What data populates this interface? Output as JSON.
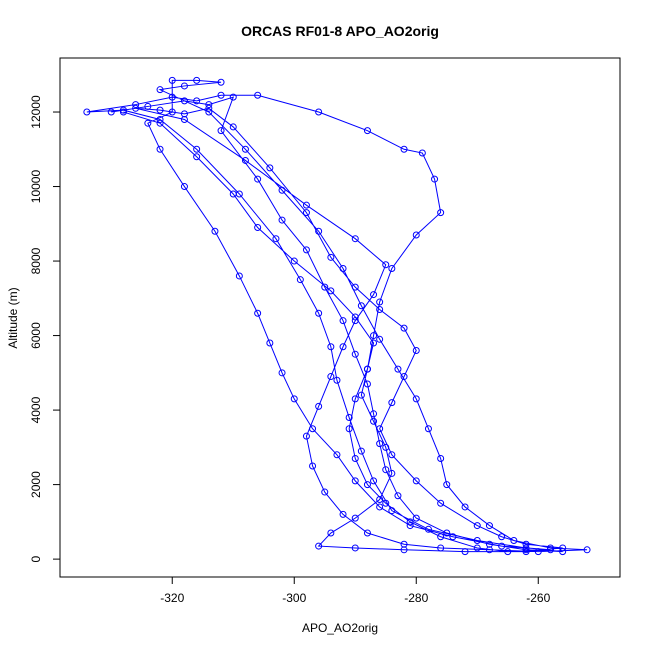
{
  "chart_data": {
    "type": "line",
    "title": "ORCAS RF01-8 APO_AO2orig",
    "x_label": "APO_AO2orig",
    "y_label": "Altitude (m)",
    "color": "#0000ff",
    "markers": "open-circle",
    "xlim": [
      -338.4,
      -246.6
    ],
    "ylim": [
      -480,
      13450
    ],
    "xticks": [
      -320,
      -300,
      -280,
      -260
    ],
    "yticks": [
      0,
      2000,
      4000,
      6000,
      8000,
      10000,
      12000
    ],
    "x": [
      -330,
      -324,
      -318,
      -314,
      -310,
      -312,
      -306,
      -302,
      -298,
      -295,
      -292,
      -290,
      -288,
      -287,
      -286,
      -285,
      -283,
      -280,
      -275,
      -268,
      -262,
      -256,
      -262,
      -270,
      -278,
      -284,
      -287,
      -289,
      -291,
      -293,
      -294,
      -296,
      -299,
      -303,
      -309,
      -316,
      -322,
      -328,
      -334,
      -326,
      -320,
      -316,
      -312,
      -306,
      -296,
      -288,
      -282,
      -279,
      -277,
      -276,
      -280,
      -284,
      -286,
      -287,
      -288,
      -290,
      -291,
      -290,
      -288,
      -285,
      -281,
      -276,
      -270,
      -265,
      -258,
      -266,
      -274,
      -281,
      -286,
      -290,
      -293,
      -297,
      -300,
      -302,
      -304,
      -306,
      -309,
      -313,
      -318,
      -322,
      -324,
      -320,
      -320,
      -316,
      -312,
      -318,
      -322,
      -314,
      -308,
      -302,
      -296,
      -292,
      -289,
      -286,
      -283,
      -280,
      -278,
      -276,
      -275,
      -272,
      -268,
      -264,
      -258,
      -252,
      -260,
      -268,
      -276,
      -282,
      -288,
      -292,
      -295,
      -297,
      -298,
      -296,
      -294,
      -292,
      -290,
      -287,
      -285,
      -290,
      -298,
      -308,
      -318,
      -326,
      -322,
      -318,
      -314,
      -310,
      -304,
      -298,
      -294,
      -290,
      -286,
      -282,
      -280,
      -282,
      -284,
      -286,
      -284,
      -280,
      -276,
      -270,
      -266,
      -262,
      -256,
      -262,
      -272,
      -282,
      -290,
      -296,
      -294,
      -290,
      -286,
      -284,
      -285,
      -287,
      -289,
      -288,
      -287,
      -290,
      -294,
      -300,
      -306,
      -310,
      -316,
      -322,
      -328
    ],
    "values": [
      12000,
      12150,
      12300,
      12200,
      12400,
      11500,
      10200,
      9100,
      8300,
      7300,
      6400,
      5500,
      4700,
      3900,
      3100,
      2400,
      1700,
      1100,
      700,
      400,
      250,
      200,
      300,
      500,
      800,
      1300,
      2100,
      2900,
      3800,
      4800,
      5700,
      6600,
      7500,
      8600,
      9800,
      11000,
      11800,
      12050,
      12000,
      12200,
      12400,
      12300,
      12450,
      12450,
      12000,
      11500,
      11000,
      10900,
      10200,
      9300,
      8700,
      7800,
      6900,
      6000,
      5100,
      4300,
      3500,
      2700,
      2000,
      1500,
      1000,
      600,
      300,
      200,
      250,
      350,
      600,
      900,
      1400,
      2100,
      2800,
      3500,
      4300,
      5000,
      5800,
      6600,
      7600,
      8800,
      10000,
      11000,
      11700,
      12000,
      12850,
      12850,
      12800,
      12700,
      12600,
      12000,
      11000,
      9900,
      8800,
      7800,
      6800,
      5900,
      5100,
      4300,
      3500,
      2700,
      2000,
      1400,
      900,
      500,
      300,
      250,
      200,
      250,
      300,
      400,
      700,
      1200,
      1800,
      2500,
      3300,
      4100,
      4900,
      5700,
      6400,
      7100,
      7900,
      8600,
      9500,
      10700,
      11800,
      12100,
      12050,
      11950,
      12100,
      11600,
      10500,
      9300,
      8100,
      7300,
      6700,
      6200,
      5600,
      4900,
      4200,
      3500,
      2800,
      2100,
      1500,
      900,
      600,
      400,
      300,
      200,
      200,
      250,
      300,
      350,
      700,
      1100,
      1600,
      2300,
      3000,
      3700,
      4400,
      5100,
      5800,
      6500,
      7200,
      8000,
      8900,
      9800,
      10800,
      11700,
      12000
    ]
  }
}
